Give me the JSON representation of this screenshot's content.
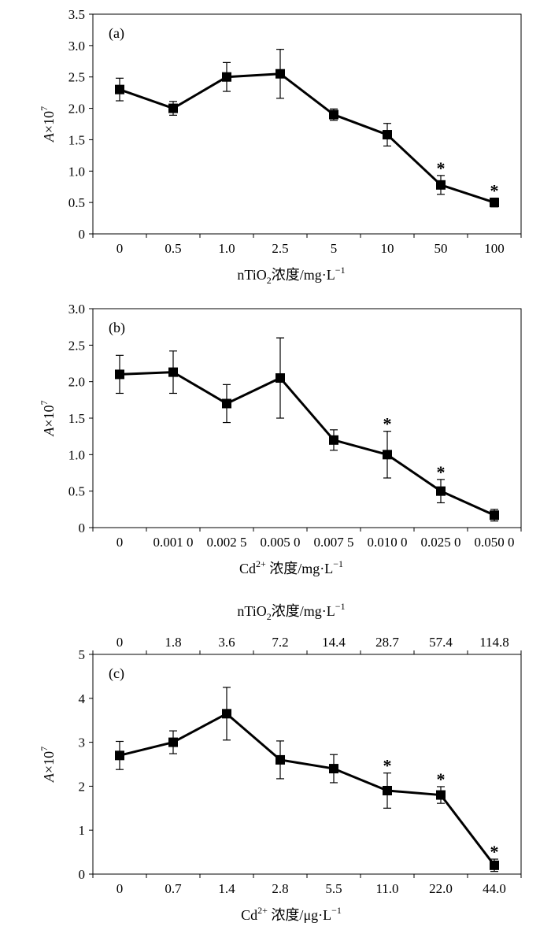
{
  "chart_data": [
    {
      "type": "line",
      "panel_label": "(a)",
      "ylabel": {
        "italic": "A",
        "rest": "×10",
        "sup": "7"
      },
      "xlabel": {
        "pre": "nTiO",
        "sub": "2",
        "post": "浓度/mg·L",
        "sup": "−1"
      },
      "categories": [
        "0",
        "0.5",
        "1.0",
        "2.5",
        "5",
        "10",
        "50",
        "100"
      ],
      "series": [
        {
          "values": [
            2.3,
            2.0,
            2.5,
            2.55,
            1.9,
            1.58,
            0.78,
            0.5
          ],
          "errors": [
            0.18,
            0.11,
            0.23,
            0.39,
            0.09,
            0.18,
            0.15,
            0.07
          ],
          "significant": [
            false,
            false,
            false,
            false,
            false,
            false,
            true,
            true
          ]
        }
      ],
      "ylim": [
        0,
        3.5
      ],
      "yticks": [
        0,
        0.5,
        1.0,
        1.5,
        2.0,
        2.5,
        3.0,
        3.5
      ],
      "ytick_labels": [
        "0",
        "0.5",
        "1.0",
        "1.5",
        "2.0",
        "2.5",
        "3.0",
        "3.5"
      ],
      "significance_marker": "*",
      "grid": false,
      "color": "#000000"
    },
    {
      "type": "line",
      "panel_label": "(b)",
      "ylabel": {
        "italic": "A",
        "rest": "×10",
        "sup": "7"
      },
      "xlabel": {
        "pre": "Cd",
        "sup1": "2+",
        "post": " 浓度/mg·L",
        "sup": "−1"
      },
      "categories": [
        "0",
        "0.001 0",
        "0.002 5",
        "0.005 0",
        "0.007 5",
        "0.010 0",
        "0.025 0",
        "0.050 0"
      ],
      "series": [
        {
          "values": [
            2.1,
            2.13,
            1.7,
            2.05,
            1.2,
            1.0,
            0.5,
            0.17
          ],
          "errors": [
            0.26,
            0.29,
            0.26,
            0.55,
            0.14,
            0.32,
            0.16,
            0.08
          ],
          "significant": [
            false,
            false,
            false,
            false,
            false,
            true,
            true,
            false
          ]
        }
      ],
      "ylim": [
        0,
        3.0
      ],
      "yticks": [
        0,
        0.5,
        1.0,
        1.5,
        2.0,
        2.5,
        3.0
      ],
      "ytick_labels": [
        "0",
        "0.5",
        "1.0",
        "1.5",
        "2.0",
        "2.5",
        "3.0"
      ],
      "significance_marker": "*",
      "grid": false,
      "color": "#000000"
    },
    {
      "type": "line",
      "panel_label": "(c)",
      "ylabel": {
        "italic": "A",
        "rest": "×10",
        "sup": "7"
      },
      "xlabel": {
        "pre": "Cd",
        "sup1": "2+",
        "post": " 浓度/μg·L",
        "sup": "−1"
      },
      "x2label": {
        "pre": "nTiO",
        "sub": "2",
        "post": "浓度/mg·L",
        "sup": "−1"
      },
      "categories": [
        "0",
        "0.7",
        "1.4",
        "2.8",
        "5.5",
        "11.0",
        "22.0",
        "44.0"
      ],
      "categories_top": [
        "0",
        "1.8",
        "3.6",
        "7.2",
        "14.4",
        "28.7",
        "57.4",
        "114.8"
      ],
      "series": [
        {
          "values": [
            2.7,
            3.0,
            3.65,
            2.6,
            2.4,
            1.9,
            1.8,
            0.2
          ],
          "errors": [
            0.32,
            0.26,
            0.6,
            0.43,
            0.32,
            0.4,
            0.19,
            0.14
          ],
          "significant": [
            false,
            false,
            false,
            false,
            false,
            true,
            true,
            true
          ]
        }
      ],
      "ylim": [
        0,
        5
      ],
      "yticks": [
        0,
        1,
        2,
        3,
        4,
        5
      ],
      "ytick_labels": [
        "0",
        "1",
        "2",
        "3",
        "4",
        "5"
      ],
      "significance_marker": "*",
      "grid": false,
      "color": "#000000"
    }
  ]
}
